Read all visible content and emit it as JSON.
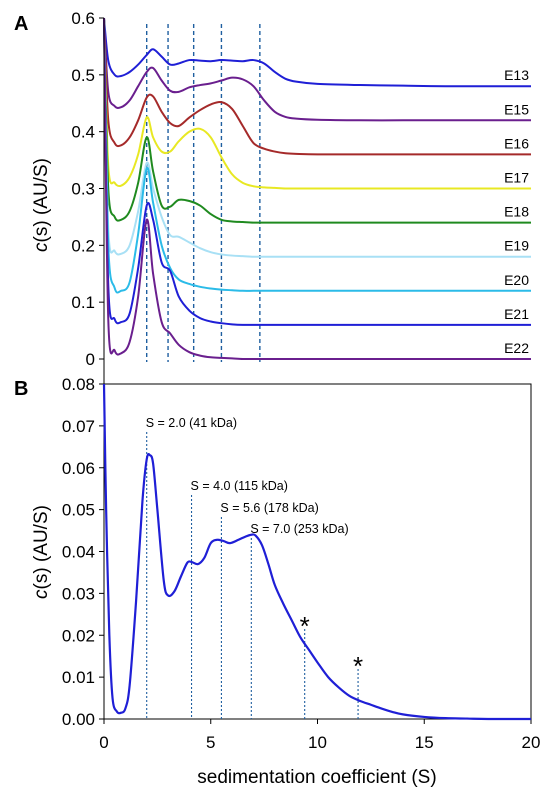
{
  "chart_data": [
    {
      "panel": "A",
      "type": "line",
      "ylabel_italic": "c",
      "ylabel_rest": "(s) (AU/S)",
      "ylim": [
        0,
        0.6
      ],
      "yticks": [
        "0",
        "0.1",
        "0.2",
        "0.3",
        "0.4",
        "0.5",
        "0.6"
      ],
      "xlim": [
        0,
        20
      ],
      "vlines_x": [
        2.0,
        3.0,
        4.2,
        5.5,
        7.3
      ],
      "series": [
        {
          "name": "E13",
          "color": "#1f1fd6",
          "offset": 0.48,
          "x": [
            0.0,
            0.2,
            0.5,
            0.8,
            1.2,
            1.6,
            2.0,
            2.3,
            2.7,
            3.1,
            3.5,
            4.0,
            4.5,
            5.0,
            5.5,
            6.0,
            6.5,
            7.0,
            7.5,
            8.0,
            8.5,
            9.0,
            10.0,
            12.0,
            14.0,
            16.0,
            20.0
          ],
          "y": [
            0.6,
            0.525,
            0.5,
            0.498,
            0.505,
            0.518,
            0.535,
            0.545,
            0.532,
            0.518,
            0.52,
            0.526,
            0.525,
            0.524,
            0.526,
            0.525,
            0.524,
            0.526,
            0.52,
            0.505,
            0.493,
            0.488,
            0.484,
            0.482,
            0.481,
            0.48,
            0.48
          ]
        },
        {
          "name": "E15",
          "color": "#6a1f8e",
          "offset": 0.42,
          "x": [
            0.0,
            0.2,
            0.5,
            0.8,
            1.2,
            1.6,
            2.0,
            2.3,
            2.7,
            3.1,
            3.5,
            4.0,
            4.5,
            5.0,
            5.5,
            6.0,
            6.5,
            7.0,
            7.5,
            8.0,
            8.5,
            9.0,
            10.0,
            12.0,
            14.0,
            16.0,
            20.0
          ],
          "y": [
            0.6,
            0.47,
            0.445,
            0.443,
            0.455,
            0.48,
            0.505,
            0.512,
            0.49,
            0.472,
            0.47,
            0.478,
            0.482,
            0.485,
            0.49,
            0.495,
            0.492,
            0.48,
            0.455,
            0.435,
            0.426,
            0.423,
            0.421,
            0.42,
            0.42,
            0.42,
            0.42
          ]
        },
        {
          "name": "E16",
          "color": "#a52a2a",
          "offset": 0.36,
          "x": [
            0.0,
            0.2,
            0.5,
            0.8,
            1.2,
            1.6,
            2.0,
            2.3,
            2.7,
            3.1,
            3.5,
            4.0,
            4.5,
            5.0,
            5.5,
            6.0,
            6.5,
            7.0,
            7.5,
            8.0,
            8.5,
            9.0,
            10.0,
            12.0,
            14.0,
            16.0,
            20.0
          ],
          "y": [
            0.6,
            0.42,
            0.38,
            0.376,
            0.39,
            0.42,
            0.46,
            0.462,
            0.435,
            0.415,
            0.41,
            0.425,
            0.438,
            0.448,
            0.452,
            0.44,
            0.41,
            0.38,
            0.37,
            0.365,
            0.362,
            0.361,
            0.36,
            0.36,
            0.36,
            0.36,
            0.36
          ]
        },
        {
          "name": "E17",
          "color": "#e8e823",
          "offset": 0.3,
          "x": [
            0.0,
            0.2,
            0.5,
            0.8,
            1.2,
            1.6,
            2.0,
            2.3,
            2.7,
            3.1,
            3.5,
            4.0,
            4.5,
            5.0,
            5.5,
            6.0,
            6.5,
            7.0,
            7.5,
            8.0,
            8.5,
            9.0,
            10.0,
            12.0,
            14.0,
            16.0,
            20.0
          ],
          "y": [
            0.6,
            0.34,
            0.31,
            0.305,
            0.32,
            0.36,
            0.425,
            0.39,
            0.365,
            0.365,
            0.383,
            0.4,
            0.405,
            0.39,
            0.355,
            0.325,
            0.31,
            0.304,
            0.302,
            0.301,
            0.3,
            0.3,
            0.3,
            0.3,
            0.3,
            0.3,
            0.3
          ]
        },
        {
          "name": "E18",
          "color": "#1f8a1f",
          "offset": 0.24,
          "x": [
            0.0,
            0.2,
            0.5,
            0.8,
            1.2,
            1.6,
            2.0,
            2.3,
            2.7,
            3.1,
            3.5,
            4.0,
            4.5,
            5.0,
            5.5,
            6.0,
            6.5,
            7.0,
            7.5,
            8.0,
            8.5,
            9.0,
            10.0,
            12.0,
            14.0,
            16.0,
            20.0
          ],
          "y": [
            0.6,
            0.3,
            0.25,
            0.245,
            0.26,
            0.31,
            0.39,
            0.33,
            0.27,
            0.268,
            0.28,
            0.278,
            0.27,
            0.255,
            0.245,
            0.242,
            0.241,
            0.24,
            0.24,
            0.24,
            0.24,
            0.24,
            0.24,
            0.24,
            0.24,
            0.24,
            0.24
          ]
        },
        {
          "name": "E19",
          "color": "#a8e0f5",
          "offset": 0.18,
          "x": [
            0.0,
            0.2,
            0.5,
            0.8,
            1.2,
            1.6,
            2.0,
            2.3,
            2.7,
            3.1,
            3.5,
            4.0,
            4.5,
            5.0,
            5.5,
            6.0,
            6.5,
            7.0,
            7.5,
            8.0,
            8.5,
            9.0,
            10.0,
            12.0,
            14.0,
            16.0,
            20.0
          ],
          "y": [
            0.6,
            0.23,
            0.19,
            0.185,
            0.2,
            0.26,
            0.345,
            0.3,
            0.25,
            0.218,
            0.215,
            0.205,
            0.195,
            0.188,
            0.184,
            0.182,
            0.181,
            0.18,
            0.18,
            0.18,
            0.18,
            0.18,
            0.18,
            0.18,
            0.18,
            0.18,
            0.18
          ]
        },
        {
          "name": "E20",
          "color": "#2bbbe8",
          "offset": 0.12,
          "x": [
            0.0,
            0.2,
            0.5,
            0.8,
            1.2,
            1.6,
            2.0,
            2.3,
            2.7,
            3.1,
            3.5,
            4.0,
            4.5,
            5.0,
            5.5,
            6.0,
            6.5,
            7.0,
            7.5,
            8.0,
            8.5,
            9.0,
            10.0,
            12.0,
            14.0,
            16.0,
            20.0
          ],
          "y": [
            0.6,
            0.2,
            0.125,
            0.12,
            0.135,
            0.22,
            0.335,
            0.275,
            0.2,
            0.16,
            0.14,
            0.132,
            0.127,
            0.124,
            0.122,
            0.121,
            0.12,
            0.12,
            0.12,
            0.12,
            0.12,
            0.12,
            0.12,
            0.12,
            0.12,
            0.12,
            0.12
          ]
        },
        {
          "name": "E21",
          "color": "#1f1fd6",
          "offset": 0.06,
          "x": [
            0.0,
            0.2,
            0.5,
            0.8,
            1.2,
            1.6,
            2.0,
            2.3,
            2.7,
            3.1,
            3.5,
            4.0,
            4.5,
            5.0,
            5.5,
            6.0,
            6.5,
            7.0,
            7.5,
            8.0,
            8.5,
            9.0,
            10.0,
            12.0,
            14.0,
            16.0,
            20.0
          ],
          "y": [
            0.6,
            0.13,
            0.07,
            0.065,
            0.08,
            0.16,
            0.27,
            0.245,
            0.17,
            0.155,
            0.11,
            0.085,
            0.072,
            0.066,
            0.063,
            0.061,
            0.06,
            0.06,
            0.06,
            0.06,
            0.06,
            0.06,
            0.06,
            0.06,
            0.06,
            0.06,
            0.06
          ]
        },
        {
          "name": "E22",
          "color": "#6a1f8e",
          "offset": 0.0,
          "x": [
            0.0,
            0.2,
            0.5,
            0.8,
            1.2,
            1.6,
            2.0,
            2.3,
            2.7,
            3.1,
            3.5,
            4.0,
            4.5,
            5.0,
            5.5,
            6.0,
            6.5,
            7.0,
            7.5,
            8.0,
            8.5,
            9.0,
            10.0,
            12.0,
            14.0,
            16.0,
            20.0
          ],
          "y": [
            0.6,
            0.07,
            0.015,
            0.01,
            0.03,
            0.11,
            0.245,
            0.15,
            0.065,
            0.045,
            0.025,
            0.012,
            0.006,
            0.003,
            0.002,
            0.001,
            0.0,
            0.0,
            0.0,
            0.0,
            0.0,
            0.0,
            0.0,
            0.0,
            0.0,
            0.0,
            0.0
          ]
        }
      ],
      "grid": false,
      "legend": "none"
    },
    {
      "panel": "B",
      "type": "line",
      "ylabel_italic": "c",
      "ylabel_rest": "(s) (AU/S)",
      "xlabel": "sedimentation coefficient (S)",
      "xlim": [
        0,
        20
      ],
      "ylim": [
        0,
        0.08
      ],
      "xticks": [
        "0",
        "5",
        "10",
        "15",
        "20"
      ],
      "yticks": [
        "0.00",
        "0.01",
        "0.02",
        "0.03",
        "0.04",
        "0.05",
        "0.06",
        "0.07",
        "0.08"
      ],
      "series": [
        {
          "name": "",
          "color": "#1f1fd6",
          "x": [
            0.0,
            0.1,
            0.25,
            0.4,
            0.6,
            0.8,
            1.0,
            1.2,
            1.5,
            1.8,
            2.0,
            2.15,
            2.3,
            2.5,
            2.8,
            3.0,
            3.3,
            3.6,
            3.9,
            4.1,
            4.4,
            4.7,
            5.0,
            5.3,
            5.6,
            5.9,
            6.3,
            6.6,
            6.9,
            7.1,
            7.4,
            7.7,
            8.0,
            8.4,
            8.8,
            9.2,
            9.6,
            10.0,
            10.5,
            11.0,
            11.5,
            12.0,
            12.5,
            13.0,
            13.5,
            14.0,
            15.0,
            16.0,
            17.0,
            18.0,
            20.0
          ],
          "y": [
            0.08,
            0.05,
            0.02,
            0.005,
            0.0018,
            0.0015,
            0.0025,
            0.008,
            0.028,
            0.052,
            0.062,
            0.063,
            0.061,
            0.05,
            0.033,
            0.0295,
            0.0305,
            0.034,
            0.0373,
            0.0375,
            0.037,
            0.0385,
            0.042,
            0.0428,
            0.0425,
            0.042,
            0.0428,
            0.0435,
            0.044,
            0.0438,
            0.0415,
            0.037,
            0.032,
            0.0275,
            0.0235,
            0.0195,
            0.0165,
            0.0135,
            0.01,
            0.0075,
            0.0055,
            0.0043,
            0.0034,
            0.0025,
            0.0017,
            0.0011,
            0.0005,
            0.0002,
            0.0001,
            0.0,
            0.0
          ]
        }
      ],
      "annotations": [
        {
          "label": "S = 2.0 (41 kDa)",
          "x": 2.0,
          "y": 0.062
        },
        {
          "label": "S = 4.0 (115 kDa)",
          "x": 4.1,
          "y": 0.0375
        },
        {
          "label": "S = 5.6 (178 kDa)",
          "x": 5.5,
          "y": 0.0428
        },
        {
          "label": "S = 7.0 (253 kDa)",
          "x": 6.9,
          "y": 0.044
        }
      ],
      "markers": [
        {
          "label": "*",
          "x": 9.4,
          "y": 0.0185
        },
        {
          "label": "*",
          "x": 11.9,
          "y": 0.0045
        }
      ],
      "grid": false,
      "legend": "none"
    }
  ]
}
